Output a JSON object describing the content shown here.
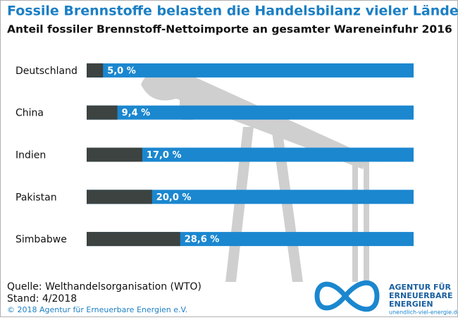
{
  "chart_data": {
    "type": "hbar",
    "title": "Fossile Brennstoffe belasten die Handelsbilanz vieler Länder",
    "subtitle": "Anteil fossiler Brennstoff-Nettoimporte an gesamter Wareneinfuhr 2016",
    "categories": [
      "Deutschland",
      "China",
      "Indien",
      "Pakistan",
      "Simbabwe"
    ],
    "values": [
      5.0,
      9.4,
      17.0,
      20.0,
      28.6
    ],
    "value_labels": [
      "5,0 %",
      "9,4 %",
      "17,0 %",
      "20,0 %",
      "28,6 %"
    ],
    "color": "#3c4341",
    "track_color": "#1b87cf",
    "xlim": [
      0,
      100
    ]
  },
  "footer": {
    "source": "Quelle: Welthandelsorganisation (WTO)",
    "stand": "Stand: 4/2018",
    "copyright": "© 2018 Agentur für Erneuerbare Energien e.V."
  },
  "logo": {
    "line1": "AGENTUR FÜR",
    "line2": "ERNEUERBARE",
    "line3": "ENERGIEN",
    "url": "unendlich-viel-energie.de"
  }
}
